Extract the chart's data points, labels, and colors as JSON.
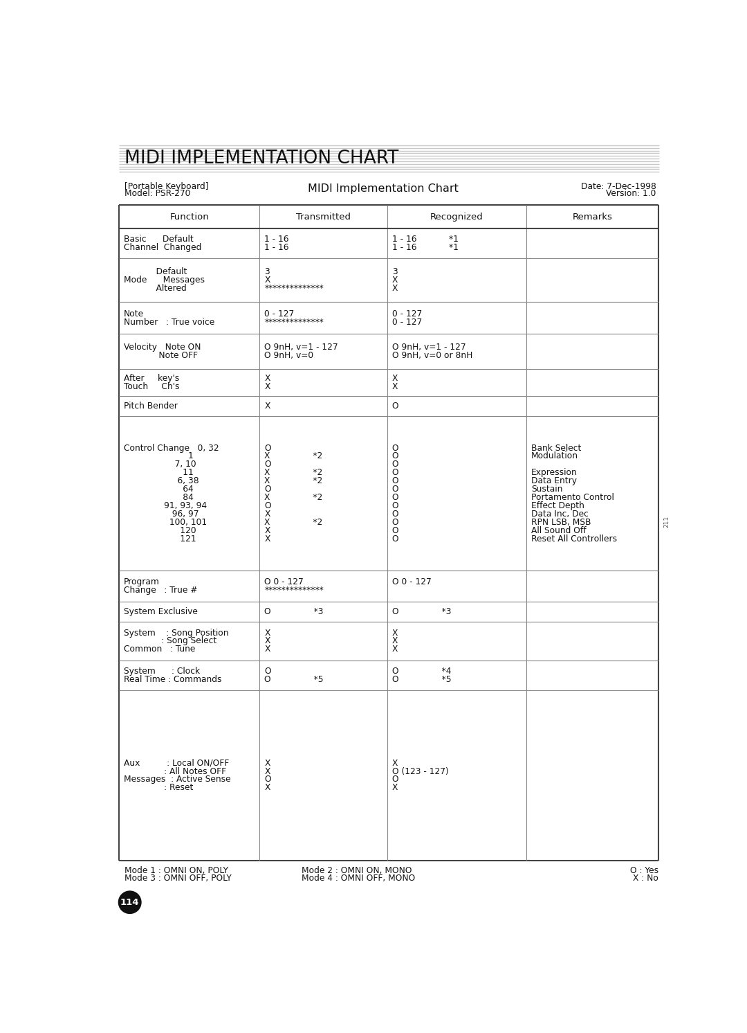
{
  "title": "MIDI IMPLEMENTATION CHART",
  "subtitle": "MIDI Implementation Chart",
  "left_info_1": "[Portable Keyboard]",
  "left_info_2": "Model: PSR-270",
  "right_info_1": "Date: 7-Dec-1998",
  "right_info_2": "Version: 1.0",
  "col_headers": [
    "Function",
    "Transmitted",
    "Recognized",
    "Remarks"
  ],
  "bg_color": "#ffffff",
  "text_color": "#111111",
  "stripe_color": "#cccccc",
  "border_color": "#444444",
  "inner_line_color": "#888888",
  "font_size": 8.8,
  "rows": [
    {
      "func": [
        "Basic      Default",
        "Channel  Changed"
      ],
      "trans": [
        "1 - 16",
        "1 - 16"
      ],
      "recog": [
        "1 - 16            *1",
        "1 - 16            *1"
      ],
      "rem": [
        "",
        ""
      ]
    },
    {
      "func": [
        "            Default",
        "Mode      Messages",
        "            Altered"
      ],
      "trans": [
        "3",
        "X",
        "**************"
      ],
      "recog": [
        "3",
        "X",
        "X"
      ],
      "rem": [
        "",
        "",
        ""
      ]
    },
    {
      "func": [
        "Note",
        "Number   : True voice"
      ],
      "trans": [
        "0 - 127",
        "**************"
      ],
      "recog": [
        "0 - 127",
        "0 - 127"
      ],
      "rem": [
        "",
        ""
      ]
    },
    {
      "func": [
        "Velocity   Note ON",
        "             Note OFF"
      ],
      "trans": [
        "O 9nH, v=1 - 127",
        "O 9nH, v=0"
      ],
      "recog": [
        "O 9nH, v=1 - 127",
        "O 9nH, v=0 or 8nH"
      ],
      "rem": [
        "",
        ""
      ]
    },
    {
      "func": [
        "After     key's",
        "Touch     Ch's"
      ],
      "trans": [
        "X",
        "X"
      ],
      "recog": [
        "X",
        "X"
      ],
      "rem": [
        "",
        ""
      ]
    },
    {
      "func": [
        "Pitch Bender"
      ],
      "trans": [
        "X"
      ],
      "recog": [
        "O"
      ],
      "rem": [
        ""
      ]
    },
    {
      "func": [
        "Control Change   0, 32",
        "                        1",
        "                   7, 10",
        "                      11",
        "                    6, 38",
        "                      64",
        "                      84",
        "               91, 93, 94",
        "                  96, 97",
        "                 100, 101",
        "                     120",
        "                     121"
      ],
      "trans": [
        "O",
        "X                *2",
        "O",
        "X                *2",
        "X                *2",
        "O",
        "X                *2",
        "O",
        "X",
        "X                *2",
        "X",
        "X"
      ],
      "recog": [
        "O",
        "O",
        "O",
        "O",
        "O",
        "O",
        "O",
        "O",
        "O",
        "O",
        "O",
        "O"
      ],
      "rem": [
        "Bank Select",
        "Modulation",
        "",
        "Expression",
        "Data Entry",
        "Sustain",
        "Portamento Control",
        "Effect Depth",
        "Data Inc, Dec",
        "RPN LSB, MSB",
        "All Sound Off",
        "Reset All Controllers"
      ]
    },
    {
      "func": [
        "Program",
        "Change   : True #"
      ],
      "trans": [
        "O 0 - 127",
        "**************"
      ],
      "recog": [
        "O 0 - 127",
        ""
      ],
      "rem": [
        "",
        ""
      ]
    },
    {
      "func": [
        "System Exclusive"
      ],
      "trans": [
        "O                *3"
      ],
      "recog": [
        "O                *3"
      ],
      "rem": [
        ""
      ]
    },
    {
      "func": [
        "System    : Song Position",
        "              : Song Select",
        "Common   : Tune"
      ],
      "trans": [
        "X",
        "X",
        "X"
      ],
      "recog": [
        "X",
        "X",
        "X"
      ],
      "rem": [
        "",
        "",
        ""
      ]
    },
    {
      "func": [
        "System      : Clock",
        "Real Time : Commands"
      ],
      "trans": [
        "O",
        "O                *5"
      ],
      "recog": [
        "O                *4",
        "O                *5"
      ],
      "rem": [
        "",
        ""
      ]
    },
    {
      "func": [
        "Aux          : Local ON/OFF",
        "               : All Notes OFF",
        "Messages  : Active Sense",
        "               : Reset"
      ],
      "trans": [
        "X",
        "X",
        "O",
        "X"
      ],
      "recog": [
        "X",
        "O (123 - 127)",
        "O",
        "X"
      ],
      "rem": [
        "",
        "",
        "",
        ""
      ]
    }
  ],
  "footer_left_1": "Mode 1 : OMNI ON, POLY",
  "footer_left_2": "Mode 3 : OMNI OFF, POLY",
  "footer_mid_1": "Mode 2 : OMNI ON, MONO",
  "footer_mid_2": "Mode 4 : OMNI OFF, MONO",
  "footer_right_1": "O : Yes",
  "footer_right_2": "X : No",
  "page_num": "114",
  "side_num": "211"
}
